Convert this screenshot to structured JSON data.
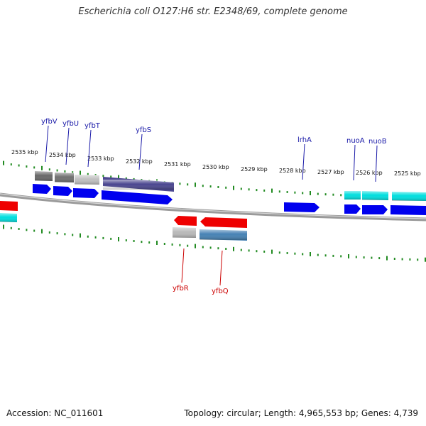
{
  "title": "Escherichia coli O127:H6 str. E2348/69, complete genome",
  "accession": "Accession: NC_011601",
  "summary": "Topology: circular; Length: 4,965,553 bp; Genes: 4,739",
  "colors": {
    "forward_gene": "#0000ee",
    "reverse_gene": "#ee0000",
    "forward_label": "#1a1aa8",
    "reverse_label": "#cc0000",
    "tick": "#228b22",
    "backbone": "#888888",
    "cds_cyan": "#00e0e0",
    "cds_purple": "#4b4790",
    "cds_steelblue": "#4682b4",
    "cds_gray": "#808080",
    "cds_lightgray": "#c4c4c4"
  },
  "kbp_labels": [
    "2535 kbp",
    "2534 kbp",
    "2533 kbp",
    "2532 kbp",
    "2531 kbp",
    "2530 kbp",
    "2529 kbp",
    "2528 kbp",
    "2527 kbp",
    "2526 kbp",
    "2525 kbp"
  ],
  "forward_genes": [
    "yfbV",
    "yfbU",
    "yfbT",
    "yfbS",
    "lrhA",
    "nuoA",
    "nuoB"
  ],
  "reverse_genes": [
    "yfbR",
    "yfbQ"
  ]
}
